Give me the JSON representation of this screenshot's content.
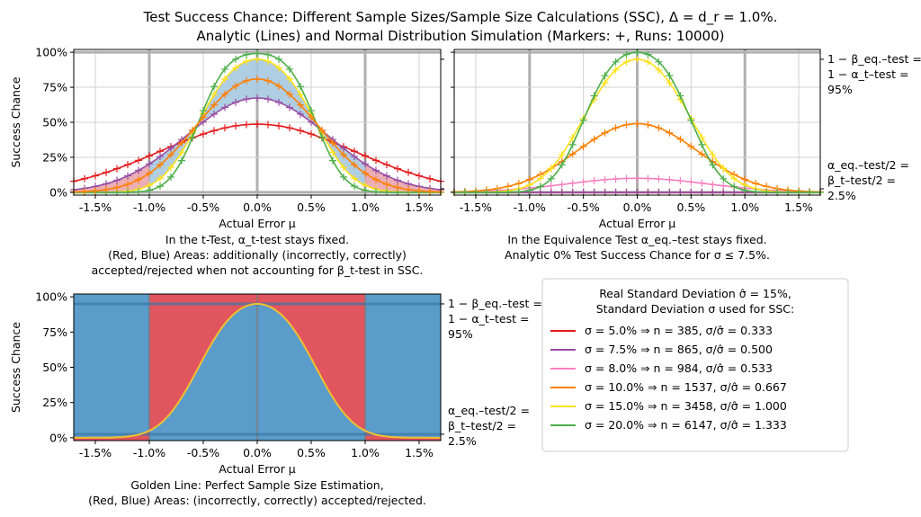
{
  "title_line1": "Test Success Chance: Different Sample Sizes/Sample Size Calculations (SSC), Δ = d_r = 1.0%.",
  "title_line2": "Analytic (Lines) and Normal Distribution Simulation (Markers: +, Runs: 10000)",
  "colors": {
    "red": "#e41a1c",
    "purple": "#984ea3",
    "pink": "#f781bf",
    "orange": "#ff7f00",
    "yellow": "#ffe119",
    "green": "#4daf4a",
    "area_red": "#e8a0a8",
    "area_blue": "#a6c8e0",
    "bottom_red": "#e0555e",
    "bottom_blue": "#5b9ccb",
    "gold": "#f0c030"
  },
  "chart_data": [
    {
      "id": "tl",
      "type": "line",
      "title": "",
      "xlabel": "Actual Error μ",
      "ylabel": "Success Chance",
      "xlim": [
        -1.7,
        1.7
      ],
      "ylim": [
        -2,
        102
      ],
      "xticks": [
        "-1.5%",
        "-1.0%",
        "-0.5%",
        "0.0%",
        "0.5%",
        "1.0%",
        "1.5%"
      ],
      "xtick_values": [
        -1.5,
        -1.0,
        -0.5,
        0.0,
        0.5,
        1.0,
        1.5
      ],
      "yticks": [
        "0%",
        "25%",
        "50%",
        "75%",
        "100%"
      ],
      "ytick_values": [
        0,
        25,
        50,
        75,
        100
      ],
      "grid": true,
      "caption": [
        "In the t-Test, α_t-test stays fixed.",
        "(Red, Blue) Areas: additionally (incorrectly, correctly)",
        "accepted/rejected when not accounting for β_t-test in SSC."
      ],
      "test": "t-test",
      "series": [
        {
          "name": "σ = 5.0%",
          "sigma": 5.0,
          "n": 385,
          "color": "red"
        },
        {
          "name": "σ = 7.5%",
          "sigma": 7.5,
          "n": 865,
          "color": "purple"
        },
        {
          "name": "σ = 15.0%",
          "sigma": 15.0,
          "n": 3458,
          "color": "yellow"
        },
        {
          "name": "σ = 20.0%",
          "sigma": 20.0,
          "n": 6147,
          "color": "green"
        },
        {
          "name": "σ = 10.0%",
          "sigma": 10.0,
          "n": 1537,
          "color": "orange"
        }
      ],
      "peak": 95
    },
    {
      "id": "tr",
      "type": "line",
      "xlabel": "Actual Error μ",
      "ylabel": "",
      "xlim": [
        -1.7,
        1.7
      ],
      "ylim": [
        -2,
        102
      ],
      "xticks": [
        "-1.5%",
        "-1.0%",
        "-0.5%",
        "0.0%",
        "0.5%",
        "1.0%",
        "1.5%"
      ],
      "xtick_values": [
        -1.5,
        -1.0,
        -0.5,
        0.0,
        0.5,
        1.0,
        1.5
      ],
      "grid": true,
      "right_labels": {
        "top": [
          "1 − β_eq.–test =",
          "1 − α_t–test =",
          "95%"
        ],
        "bottom": [
          "α_eq.–test/2 =",
          "β_t–test/2 =",
          "2.5%"
        ]
      },
      "caption": [
        "In the Equivalence Test α_eq.–test stays fixed.",
        "Analytic 0% Test Success Chance for σ ≤ 7.5%."
      ],
      "test": "equivalence",
      "series": [
        {
          "name": "σ = 5.0%",
          "sigma": 5.0,
          "n": 385,
          "color": "red",
          "peak": 0
        },
        {
          "name": "σ = 7.5%",
          "sigma": 7.5,
          "n": 865,
          "color": "purple",
          "peak": 0
        },
        {
          "name": "σ = 8.0%",
          "sigma": 8.0,
          "n": 984,
          "color": "pink",
          "peak": 10
        },
        {
          "name": "σ = 10.0%",
          "sigma": 10.0,
          "n": 1537,
          "color": "orange",
          "peak": 49
        },
        {
          "name": "σ = 15.0%",
          "sigma": 15.0,
          "n": 3458,
          "color": "yellow",
          "peak": 95
        },
        {
          "name": "σ = 20.0%",
          "sigma": 20.0,
          "n": 6147,
          "color": "green",
          "peak": 100
        }
      ]
    },
    {
      "id": "bl",
      "type": "area",
      "xlabel": "Actual Error μ",
      "ylabel": "Success Chance",
      "xlim": [
        -1.7,
        1.7
      ],
      "ylim": [
        -2,
        102
      ],
      "xticks": [
        "-1.5%",
        "-1.0%",
        "-0.5%",
        "0.0%",
        "0.5%",
        "1.0%",
        "1.5%"
      ],
      "xtick_values": [
        -1.5,
        -1.0,
        -0.5,
        0.0,
        0.5,
        1.0,
        1.5
      ],
      "yticks": [
        "0%",
        "25%",
        "50%",
        "75%",
        "100%"
      ],
      "ytick_values": [
        0,
        25,
        50,
        75,
        100
      ],
      "right_labels": {
        "top": [
          "1 − β_eq.–test =",
          "1 − α_t–test =",
          "95%"
        ],
        "bottom": [
          "α_eq.–test/2 =",
          "β_t–test/2 =",
          "2.5%"
        ]
      },
      "caption": [
        "Golden Line: Perfect Sample Size Estimation,",
        "(Red, Blue) Areas: (incorrectly, correctly) accepted/rejected."
      ],
      "series": [
        {
          "name": "Perfect Sample Size Estimation",
          "sigma": 15.0,
          "n": 3458,
          "color": "gold"
        }
      ]
    }
  ],
  "legend": {
    "title": [
      "Real Standard Deviation σ̂ = 15%,",
      "Standard Deviation σ used for SSC:"
    ],
    "entries": [
      {
        "color": "red",
        "text": "σ =   5.0% ⇒ n =   385, σ/σ̂ = 0.333"
      },
      {
        "color": "purple",
        "text": "σ =   7.5% ⇒ n =   865, σ/σ̂ = 0.500"
      },
      {
        "color": "pink",
        "text": "σ =   8.0% ⇒ n =   984, σ/σ̂ = 0.533"
      },
      {
        "color": "orange",
        "text": "σ = 10.0% ⇒ n = 1537, σ/σ̂ = 0.667"
      },
      {
        "color": "yellow",
        "text": "σ = 15.0% ⇒ n = 3458, σ/σ̂ = 1.000"
      },
      {
        "color": "green",
        "text": "σ = 20.0% ⇒ n = 6147, σ/σ̂ = 1.333"
      }
    ]
  }
}
